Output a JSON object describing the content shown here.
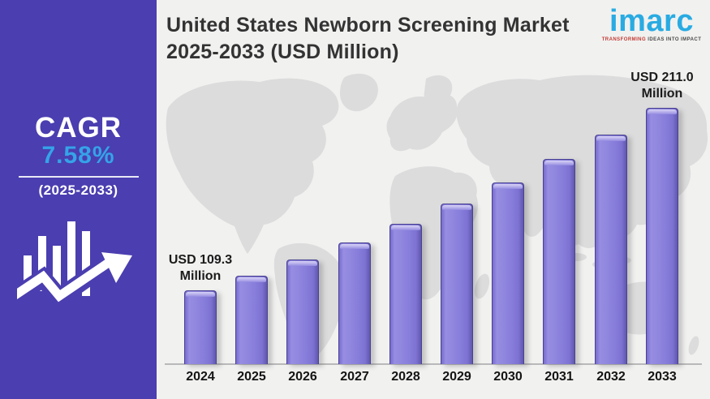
{
  "header": {
    "title_line1": "United States Newborn Screening Market",
    "title_line2": "2025-2033 (USD Million)"
  },
  "logo": {
    "brand": "imarc",
    "tagline_highlight": "TRANSFORMING",
    "tagline_rest": " IDEAS INTO IMPACT",
    "brand_color": "#29abe2"
  },
  "sidebar": {
    "cagr_label": "CAGR",
    "cagr_value": "7.58%",
    "cagr_period": "(2025-2033)",
    "background_color": "#4a3eb0",
    "accent_color": "#35a3e8",
    "icon": "growth-bars-arrow-icon"
  },
  "chart_data": {
    "type": "bar",
    "title": "United States Newborn Screening Market 2025-2033 (USD Million)",
    "unit": "USD Million",
    "categories": [
      "2024",
      "2025",
      "2026",
      "2027",
      "2028",
      "2029",
      "2030",
      "2031",
      "2032",
      "2033"
    ],
    "values": [
      109.3,
      117.6,
      126.5,
      136.1,
      146.4,
      157.5,
      169.5,
      182.3,
      196.1,
      211.0
    ],
    "first_label": "USD 109.3 Million",
    "last_label": "USD 211.0 Million",
    "bar_color": "#8a80dc",
    "xlabel": "",
    "ylabel": "",
    "ylim": [
      0,
      220
    ],
    "grid": false,
    "legend_position": "none",
    "background": "world-map-silhouette"
  }
}
